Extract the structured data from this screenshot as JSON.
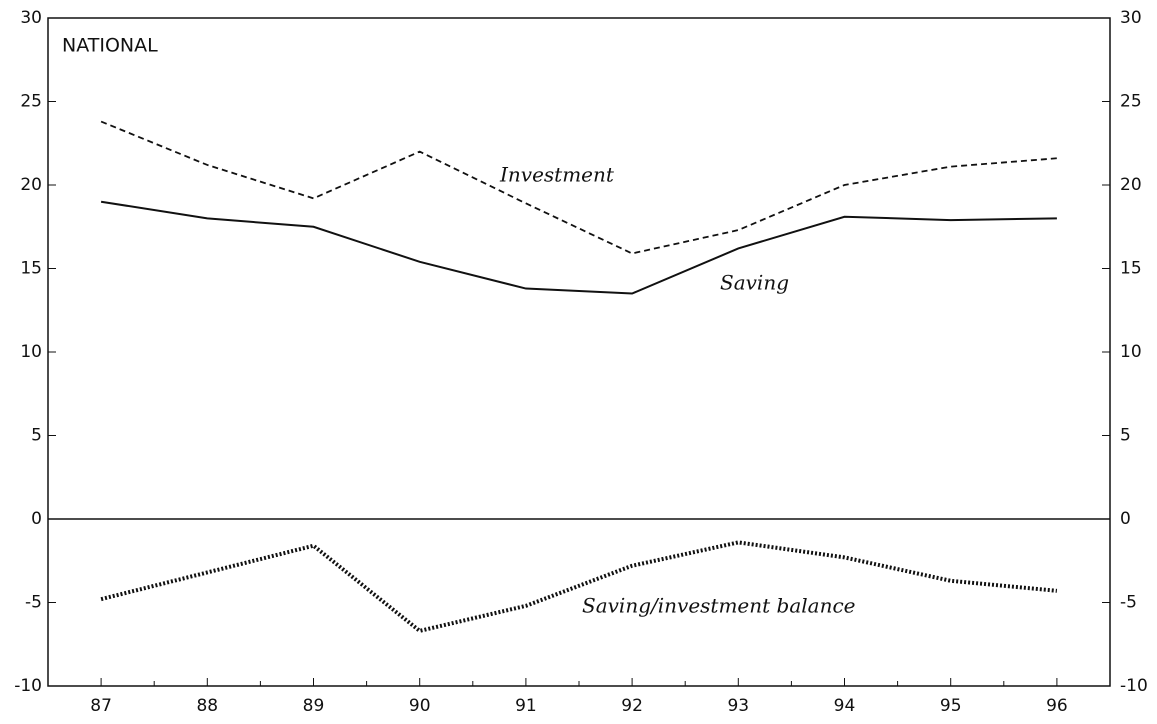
{
  "chart_data": {
    "type": "line",
    "annotations": [
      "NATIONAL",
      "Investment",
      "Saving",
      "Saving/investment balance"
    ],
    "categories": [
      "87",
      "88",
      "89",
      "90",
      "91",
      "92",
      "93",
      "94",
      "95",
      "96"
    ],
    "series": [
      {
        "name": "Saving",
        "color": "#111111",
        "style": "solid",
        "values": [
          19.0,
          18.0,
          17.5,
          15.4,
          13.8,
          13.5,
          16.2,
          18.1,
          17.9,
          18.0
        ]
      },
      {
        "name": "Investment",
        "color": "#111111",
        "style": "dashed",
        "values": [
          23.8,
          21.2,
          19.2,
          22.0,
          18.9,
          15.9,
          17.3,
          20.0,
          21.1,
          21.6
        ]
      },
      {
        "name": "Saving/investment balance",
        "color": "#111111",
        "style": "dotted",
        "values": [
          -4.8,
          -3.2,
          -1.6,
          -6.7,
          -5.2,
          -2.8,
          -1.4,
          -2.3,
          -3.7,
          -4.3
        ]
      }
    ],
    "ylim": [
      -10,
      30
    ],
    "yticks": [
      -10,
      -5,
      0,
      5,
      10,
      15,
      20,
      25,
      30
    ],
    "y2lim": [
      -10,
      30
    ],
    "y2ticks": [
      -10,
      -5,
      0,
      5,
      10,
      15,
      20,
      25,
      30
    ],
    "zero_line": true
  }
}
